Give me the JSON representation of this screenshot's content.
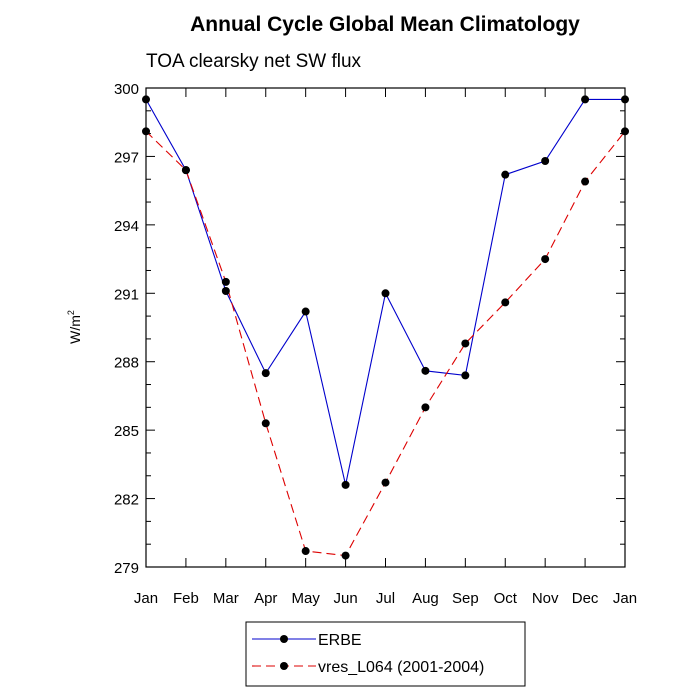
{
  "chart_data": {
    "type": "line",
    "title": "Annual Cycle Global Mean Climatology",
    "subtitle": "TOA clearsky net SW flux",
    "xlabel": "",
    "ylabel": "W/m",
    "ylabel_sup": "2",
    "categories": [
      "Jan",
      "Feb",
      "Mar",
      "Apr",
      "May",
      "Jun",
      "Jul",
      "Aug",
      "Sep",
      "Oct",
      "Nov",
      "Dec",
      "Jan"
    ],
    "ylim": [
      279,
      300
    ],
    "yticks": [
      279,
      282,
      285,
      288,
      291,
      294,
      297,
      300
    ],
    "series": [
      {
        "name": "ERBE",
        "color": "#0000cc",
        "dash": "solid",
        "values": [
          299.5,
          296.4,
          291.1,
          287.5,
          290.2,
          282.6,
          291.0,
          287.6,
          287.4,
          296.2,
          296.8,
          299.5,
          299.5
        ]
      },
      {
        "name": "vres_L064 (2001-2004)",
        "color": "#dd0000",
        "dash": "dashed",
        "values": [
          298.1,
          296.4,
          291.5,
          285.3,
          279.7,
          279.5,
          282.7,
          286.0,
          288.8,
          290.6,
          292.5,
          295.9,
          298.1
        ]
      }
    ],
    "grid": false,
    "legend_position": "bottom"
  }
}
